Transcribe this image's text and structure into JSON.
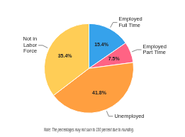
{
  "chart_data": {
    "type": "pie",
    "categories": [
      "Employed\nFull Time",
      "Employed\nPart Time",
      "Unemployed",
      "Not in\nLabor\nForce"
    ],
    "values": [
      15.4,
      7.5,
      41.8,
      35.4
    ],
    "value_labels": [
      "15.4%",
      "7.5%",
      "41.8%",
      "35.4%"
    ],
    "data_labels": true,
    "annotations": [
      "Note: The percentages may not sum to 100 percent due to rounding."
    ]
  }
}
